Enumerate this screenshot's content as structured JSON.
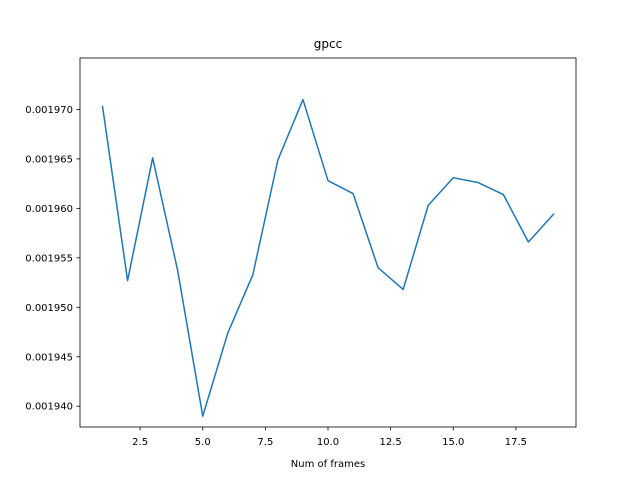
{
  "chart_data": {
    "type": "line",
    "title": "gpcc",
    "xlabel": "Num of frames",
    "ylabel": "",
    "xlim": [
      0.1,
      19.9
    ],
    "ylim": [
      0.0019379,
      0.0019752
    ],
    "xticks": [
      2.5,
      5.0,
      7.5,
      10.0,
      12.5,
      15.0,
      17.5
    ],
    "xtick_labels": [
      "2.5",
      "5.0",
      "7.5",
      "10.0",
      "12.5",
      "15.0",
      "17.5"
    ],
    "yticks": [
      0.00194,
      0.001945,
      0.00195,
      0.001955,
      0.00196,
      0.001965,
      0.00197
    ],
    "ytick_labels": [
      "0.001940",
      "0.001945",
      "0.001950",
      "0.001955",
      "0.001960",
      "0.001965",
      "0.001970"
    ],
    "grid": false,
    "series": [
      {
        "color": "#1f77b4",
        "x": [
          1,
          2,
          3,
          4,
          5,
          6,
          7,
          8,
          9,
          10,
          11,
          12,
          13,
          14,
          15,
          16,
          17,
          18,
          19
        ],
        "y": [
          0.0019703,
          0.0019527,
          0.0019651,
          0.0019537,
          0.001939,
          0.0019474,
          0.0019533,
          0.0019649,
          0.001971,
          0.0019628,
          0.0019615,
          0.001954,
          0.0019518,
          0.0019603,
          0.0019631,
          0.0019626,
          0.0019614,
          0.0019566,
          0.0019594
        ]
      }
    ]
  }
}
